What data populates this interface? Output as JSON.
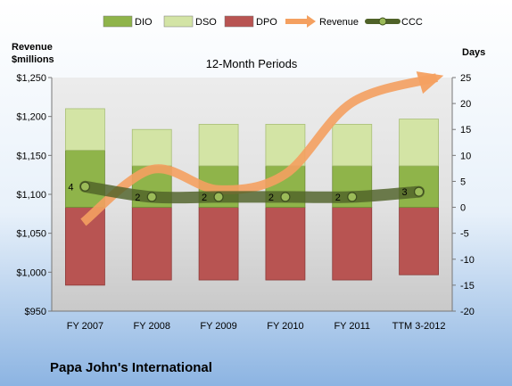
{
  "company": "Papa John's International",
  "chart_data": {
    "type": "bar",
    "title": "12-Month Periods",
    "categories": [
      "FY 2007",
      "FY 2008",
      "FY 2009",
      "FY 2010",
      "FY 2011",
      "TTM 3-2012"
    ],
    "y_left": {
      "label_lines": [
        "Revenue",
        "$millions"
      ],
      "ticks": [
        "$1,250",
        "$1,200",
        "$1,150",
        "$1,100",
        "$1,050",
        "$1,000",
        "$950"
      ],
      "range": [
        950,
        1250
      ]
    },
    "y_right": {
      "label": "Days",
      "ticks": [
        "25",
        "20",
        "15",
        "10",
        "5",
        "0",
        "-5",
        "-10",
        "-15",
        "-20"
      ],
      "range": [
        -20,
        25
      ]
    },
    "legend": {
      "placement": "top",
      "entries": [
        {
          "name": "DIO",
          "kind": "box",
          "color": "#8fb44a"
        },
        {
          "name": "DSO",
          "kind": "box",
          "color": "#d3e4a5"
        },
        {
          "name": "DPO",
          "kind": "box",
          "color": "#b85452"
        },
        {
          "name": "Revenue",
          "kind": "arrow",
          "color": "#f4a060"
        },
        {
          "name": "CCC",
          "kind": "line",
          "color": "#4f6228"
        }
      ]
    },
    "series": [
      {
        "name": "DIO",
        "axis": "right",
        "color": "#8fb44a",
        "values": [
          11,
          8,
          8,
          8,
          8,
          8
        ]
      },
      {
        "name": "DSO",
        "axis": "right",
        "color": "#d3e4a5",
        "values": [
          8,
          7,
          8,
          8,
          8,
          9
        ]
      },
      {
        "name": "DPO",
        "axis": "right",
        "color": "#b85452",
        "values": [
          -15,
          -14,
          -14,
          -14,
          -14,
          -13
        ]
      },
      {
        "name": "Revenue",
        "axis": "left",
        "color": "#f4a060",
        "values": [
          1064,
          1132,
          1106,
          1126,
          1218,
          1250
        ]
      },
      {
        "name": "CCC",
        "axis": "right",
        "color": "#4f6228",
        "values": [
          4,
          2,
          2,
          2,
          2,
          3
        ],
        "labels": [
          "4",
          "2",
          "2",
          "2",
          "2",
          "3"
        ]
      }
    ],
    "grid": false
  }
}
